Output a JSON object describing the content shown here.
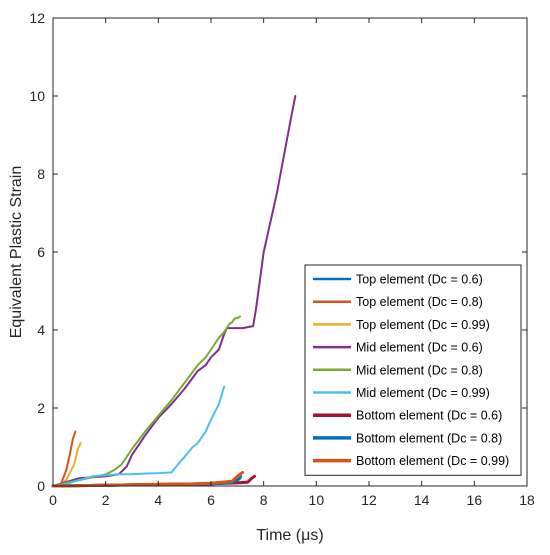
{
  "chart_data": {
    "type": "line",
    "xlabel": "Time (μs)",
    "ylabel": "Equivalent Plastic Strain",
    "xlim": [
      0,
      18
    ],
    "ylim": [
      0,
      12
    ],
    "xticks": [
      "0",
      "2",
      "4",
      "6",
      "8",
      "10",
      "12",
      "14",
      "16",
      "18"
    ],
    "yticks": [
      "0",
      "2",
      "4",
      "6",
      "8",
      "10",
      "12"
    ],
    "grid": false,
    "legend_position": "bottom-right",
    "series": [
      {
        "name": "Top element (Dc = 0.6)",
        "color": "#0072BD",
        "width": 2,
        "x": [
          0.0,
          0.5,
          1.0,
          2.0,
          3.0,
          4.0,
          5.0,
          6.0,
          6.8,
          7.05,
          7.15
        ],
        "y": [
          0.0,
          0.01,
          0.02,
          0.03,
          0.04,
          0.05,
          0.06,
          0.07,
          0.09,
          0.18,
          0.25
        ]
      },
      {
        "name": "Top element (Dc = 0.8)",
        "color": "#D95319",
        "width": 2,
        "x": [
          0.0,
          0.3,
          0.5,
          0.65,
          0.75,
          0.85
        ],
        "y": [
          0.0,
          0.05,
          0.4,
          0.85,
          1.2,
          1.4
        ]
      },
      {
        "name": "Top element (Dc = 0.99)",
        "color": "#EDB120",
        "width": 2,
        "x": [
          0.2,
          0.5,
          0.8,
          0.95,
          1.05
        ],
        "y": [
          0.0,
          0.15,
          0.55,
          0.95,
          1.1
        ]
      },
      {
        "name": "Mid element (Dc = 0.6)",
        "color": "#7E2F8E",
        "width": 2,
        "x": [
          0.0,
          1.0,
          2.0,
          2.5,
          2.8,
          3.0,
          3.5,
          4.0,
          4.5,
          5.0,
          5.5,
          5.8,
          6.0,
          6.3,
          6.5,
          6.6,
          6.8,
          7.0,
          7.2,
          7.6,
          7.7,
          8.0,
          8.5,
          9.0,
          9.2
        ],
        "y": [
          0.0,
          0.2,
          0.25,
          0.3,
          0.5,
          0.8,
          1.3,
          1.75,
          2.1,
          2.5,
          2.95,
          3.1,
          3.3,
          3.5,
          3.9,
          4.05,
          4.05,
          4.05,
          4.05,
          4.1,
          4.5,
          6.0,
          7.5,
          9.3,
          10.0
        ]
      },
      {
        "name": "Mid element (Dc = 0.8)",
        "color": "#77AC30",
        "width": 2,
        "x": [
          0.0,
          1.0,
          2.0,
          2.3,
          2.6,
          3.0,
          3.5,
          4.0,
          4.5,
          5.0,
          5.5,
          5.8,
          6.0,
          6.3,
          6.5,
          6.7,
          6.8,
          6.9,
          7.0,
          7.1
        ],
        "y": [
          0.0,
          0.15,
          0.3,
          0.4,
          0.55,
          0.95,
          1.4,
          1.8,
          2.2,
          2.65,
          3.1,
          3.3,
          3.5,
          3.8,
          3.95,
          4.15,
          4.2,
          4.3,
          4.3,
          4.35
        ]
      },
      {
        "name": "Mid element (Dc = 0.99)",
        "color": "#4DBEEE",
        "width": 2,
        "x": [
          0.0,
          0.5,
          1.0,
          1.5,
          2.0,
          2.5,
          3.0,
          3.5,
          4.0,
          4.5,
          4.8,
          5.0,
          5.3,
          5.5,
          5.8,
          6.0,
          6.3,
          6.5
        ],
        "y": [
          0.0,
          0.05,
          0.15,
          0.25,
          0.28,
          0.3,
          0.3,
          0.32,
          0.33,
          0.35,
          0.6,
          0.75,
          1.0,
          1.1,
          1.4,
          1.7,
          2.1,
          2.55
        ]
      },
      {
        "name": "Bottom element (Dc = 0.6)",
        "color": "#A2142F",
        "width": 3,
        "x": [
          0.0,
          1.0,
          2.0,
          3.0,
          4.0,
          5.0,
          6.0,
          7.0,
          7.4,
          7.55,
          7.65
        ],
        "y": [
          0.0,
          0.01,
          0.02,
          0.03,
          0.04,
          0.05,
          0.06,
          0.08,
          0.1,
          0.2,
          0.25
        ]
      },
      {
        "name": "Bottom element (Dc = 0.8)",
        "color": "#0072BD",
        "width": 3,
        "x": [
          0.0,
          1.0,
          2.0,
          3.0,
          4.0,
          5.0,
          6.0,
          6.8,
          7.0,
          7.1
        ],
        "y": [
          0.0,
          0.01,
          0.02,
          0.03,
          0.04,
          0.05,
          0.06,
          0.09,
          0.15,
          0.2
        ]
      },
      {
        "name": "Bottom element (Dc = 0.99)",
        "color": "#D95319",
        "width": 3,
        "x": [
          0.0,
          1.0,
          2.0,
          3.0,
          4.0,
          5.0,
          6.0,
          6.8,
          7.0,
          7.2
        ],
        "y": [
          0.0,
          0.01,
          0.02,
          0.03,
          0.04,
          0.05,
          0.07,
          0.12,
          0.25,
          0.35
        ]
      }
    ]
  }
}
